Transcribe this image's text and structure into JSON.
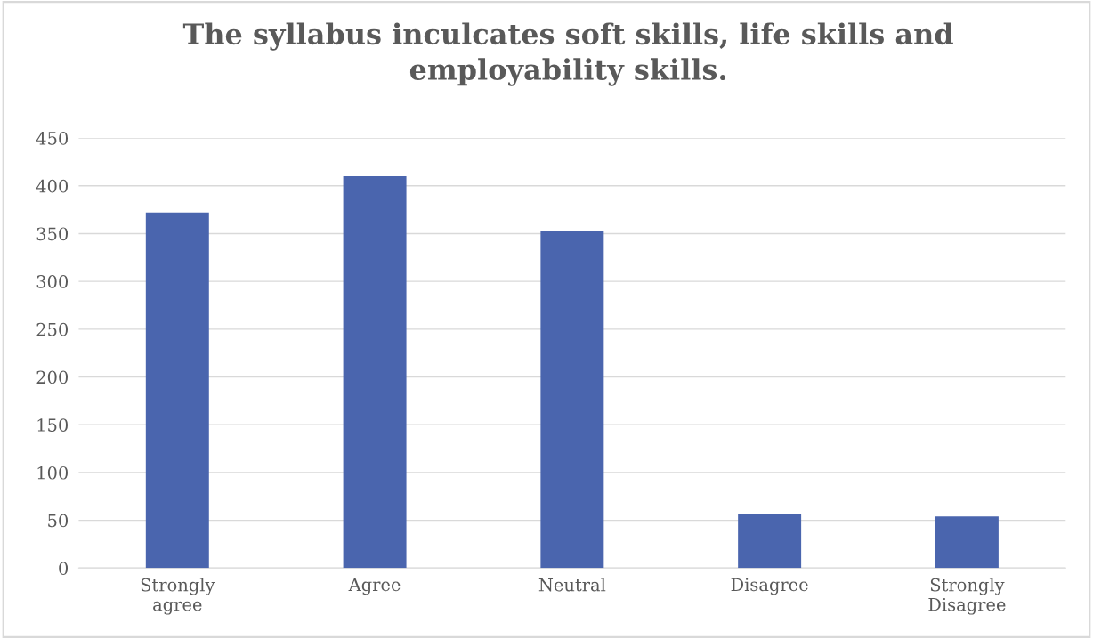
{
  "chart_data": {
    "type": "bar",
    "title": "The syllabus inculcates soft skills, life skills and\nemployability skills.",
    "categories": [
      "Strongly\nagree",
      "Agree",
      "Neutral",
      "Disagree",
      "Strongly\nDisagree"
    ],
    "values": [
      372,
      410,
      353,
      57,
      54
    ],
    "color": "#4a65ae",
    "ylim": [
      0,
      450
    ],
    "yticks": [
      0,
      50,
      100,
      150,
      200,
      250,
      300,
      350,
      400,
      450
    ],
    "grid": "y"
  }
}
